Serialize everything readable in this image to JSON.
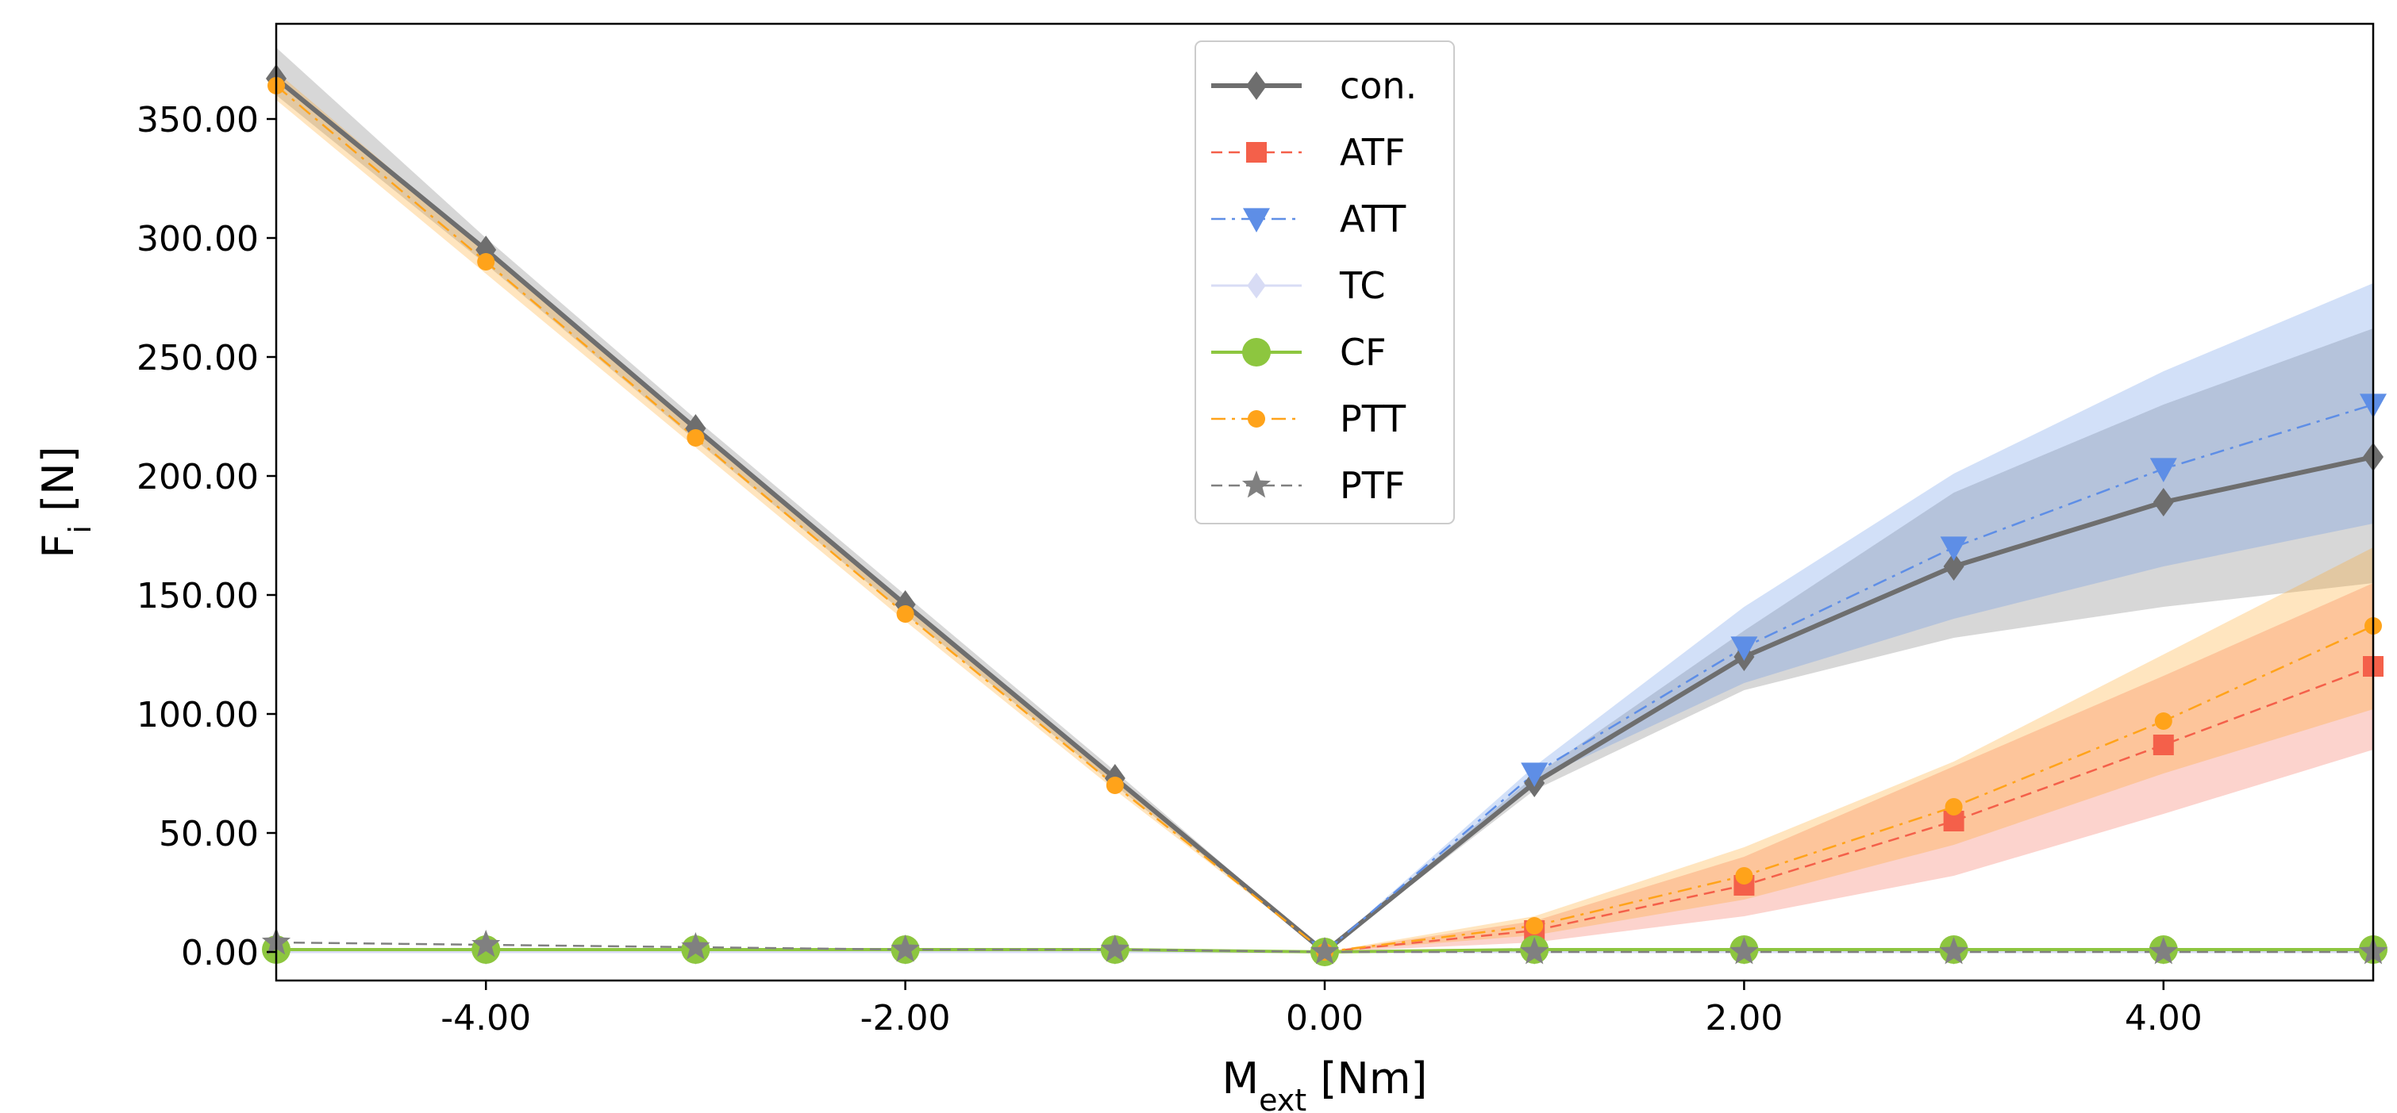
{
  "chart_data": {
    "type": "line",
    "title": "",
    "xlabel": {
      "main": "M",
      "sub": "ext",
      "unit": " [Nm]"
    },
    "ylabel": {
      "main": "F",
      "sub": "i",
      "unit": " [N]"
    },
    "xlim": [
      -5,
      5
    ],
    "ylim": [
      -12,
      390
    ],
    "x": [
      -5,
      -4,
      -3,
      -2,
      -1,
      0,
      1,
      2,
      3,
      4,
      5
    ],
    "xticks": [
      -4,
      -2,
      0,
      2,
      4
    ],
    "xtick_labels": [
      "-4.00",
      "-2.00",
      "0.00",
      "2.00",
      "4.00"
    ],
    "yticks": [
      0,
      50,
      100,
      150,
      200,
      250,
      300,
      350
    ],
    "ytick_labels": [
      "0.00",
      "50.00",
      "100.00",
      "150.00",
      "200.00",
      "250.00",
      "300.00",
      "350.00"
    ],
    "legend_position": "top-center",
    "series": [
      {
        "name": "con.",
        "color": "#6e6e6e",
        "marker": "diamond",
        "linestyle": "solid",
        "values": [
          367,
          295,
          220,
          146,
          73,
          0,
          71,
          124,
          162,
          189,
          208
        ],
        "band_lower": [
          360,
          289,
          215,
          142,
          70,
          0,
          68,
          110,
          132,
          145,
          155
        ],
        "band_upper": [
          380,
          300,
          224,
          150,
          76,
          0,
          74,
          135,
          193,
          230,
          262
        ]
      },
      {
        "name": "ATF",
        "color": "#f4604a",
        "marker": "square",
        "linestyle": "dashed",
        "values": [
          null,
          null,
          null,
          null,
          null,
          0,
          9,
          28,
          55,
          87,
          120
        ],
        "band_lower": [
          null,
          null,
          null,
          null,
          null,
          0,
          4,
          15,
          32,
          58,
          85
        ],
        "band_upper": [
          null,
          null,
          null,
          null,
          null,
          0,
          13,
          40,
          78,
          116,
          155
        ]
      },
      {
        "name": "ATT",
        "color": "#5e8ee6",
        "marker": "triangle-down",
        "linestyle": "dashdot",
        "values": [
          null,
          null,
          null,
          null,
          null,
          0,
          75,
          128,
          170,
          203,
          230
        ],
        "band_lower": [
          null,
          null,
          null,
          null,
          null,
          0,
          72,
          113,
          140,
          162,
          180
        ],
        "band_upper": [
          null,
          null,
          null,
          null,
          null,
          0,
          78,
          145,
          201,
          244,
          281
        ]
      },
      {
        "name": "TC",
        "color": "#d8dcf5",
        "marker": "diamond",
        "linestyle": "solid",
        "values": [
          0,
          0,
          0,
          0,
          0,
          0,
          0,
          0,
          0,
          0,
          0
        ]
      },
      {
        "name": "CF",
        "color": "#8dc63f",
        "marker": "circle",
        "linestyle": "solid",
        "values": [
          1,
          1,
          1,
          1,
          1,
          0,
          1,
          1,
          1,
          1,
          1
        ]
      },
      {
        "name": "PTT",
        "color": "#ffa31a",
        "marker": "circle-small",
        "linestyle": "dashdot",
        "values": [
          364,
          290,
          216,
          142,
          70,
          0,
          11,
          32,
          61,
          97,
          137
        ],
        "band_lower": [
          358,
          285,
          212,
          139,
          68,
          0,
          7,
          22,
          45,
          75,
          102
        ],
        "band_upper": [
          370,
          295,
          220,
          146,
          72,
          0,
          15,
          44,
          80,
          125,
          170
        ]
      },
      {
        "name": "PTF",
        "color": "#808080",
        "marker": "star",
        "linestyle": "dashed",
        "values": [
          4,
          3,
          2,
          1,
          1,
          0,
          0,
          0,
          0,
          0,
          0
        ]
      }
    ]
  }
}
